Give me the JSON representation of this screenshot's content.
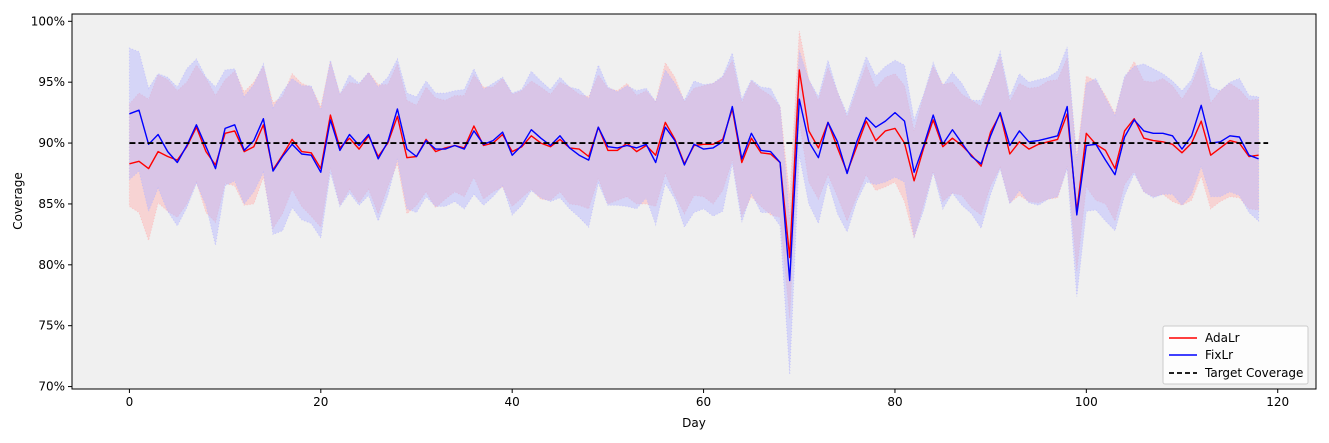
{
  "chart_data": {
    "type": "line",
    "xlabel": "Day",
    "ylabel": "Coverage",
    "xlim": [
      -6,
      124
    ],
    "ylim": [
      69.8,
      100.6
    ],
    "xticks": [
      0,
      20,
      40,
      60,
      80,
      100,
      120
    ],
    "yticks": [
      70,
      75,
      80,
      85,
      90,
      95,
      100
    ],
    "ytick_suffix": "%",
    "grid": false,
    "background": "#f0f0f0",
    "legend": {
      "position": "bottom-right",
      "entries": [
        "AdaLr",
        "FixLr",
        "Target Coverage"
      ]
    },
    "target": {
      "name": "Target Coverage",
      "value": 90,
      "color": "#000000",
      "style": "dashed"
    },
    "series": [
      {
        "name": "AdaLr",
        "color": "#ff0000",
        "band_color": "#ffb0b0",
        "x": [
          0,
          1,
          2,
          3,
          4,
          5,
          6,
          7,
          8,
          9,
          10,
          11,
          12,
          13,
          14,
          15,
          16,
          17,
          18,
          19,
          20,
          21,
          22,
          23,
          24,
          25,
          26,
          27,
          28,
          29,
          30,
          31,
          32,
          33,
          34,
          35,
          36,
          37,
          38,
          39,
          40,
          41,
          42,
          43,
          44,
          45,
          46,
          47,
          48,
          49,
          50,
          51,
          52,
          53,
          54,
          55,
          56,
          57,
          58,
          59,
          60,
          61,
          62,
          63,
          64,
          65,
          66,
          67,
          68,
          69,
          70,
          71,
          72,
          73,
          74,
          75,
          76,
          77,
          78,
          79,
          80,
          81,
          82,
          83,
          84,
          85,
          86,
          87,
          88,
          89,
          90,
          91,
          92,
          93,
          94,
          95,
          96,
          97,
          98,
          99,
          100,
          101,
          102,
          103,
          104,
          105,
          106,
          107,
          108,
          109,
          110,
          111,
          112,
          113,
          114,
          115,
          116,
          117,
          118
        ],
        "values": [
          88.3,
          88.5,
          87.9,
          89.3,
          88.9,
          88.6,
          89.7,
          91.3,
          89.3,
          88.2,
          90.8,
          91.0,
          89.3,
          89.7,
          91.5,
          87.8,
          89.0,
          90.3,
          89.3,
          89.2,
          87.9,
          92.3,
          89.6,
          90.4,
          89.5,
          90.6,
          88.9,
          90.0,
          92.2,
          88.8,
          88.9,
          90.3,
          89.3,
          89.6,
          89.8,
          89.6,
          91.4,
          89.8,
          90.0,
          90.7,
          89.3,
          89.7,
          90.6,
          90.0,
          89.7,
          90.3,
          89.6,
          89.5,
          88.9,
          91.3,
          89.4,
          89.4,
          90.0,
          89.3,
          89.8,
          89.0,
          91.7,
          90.3,
          88.3,
          89.8,
          89.9,
          89.9,
          90.3,
          92.8,
          88.4,
          90.4,
          89.2,
          89.1,
          88.4,
          80.6,
          96.0,
          91.0,
          89.6,
          91.7,
          89.6,
          87.6,
          89.7,
          91.8,
          90.2,
          91.0,
          91.2,
          90.0,
          86.9,
          89.6,
          91.9,
          89.7,
          90.4,
          89.8,
          89.0,
          88.1,
          90.9,
          92.4,
          89.1,
          90.1,
          89.5,
          89.9,
          90.1,
          90.3,
          92.4,
          84.4,
          90.8,
          89.9,
          89.4,
          87.9,
          91.0,
          92.0,
          90.4,
          90.2,
          90.1,
          89.9,
          89.2,
          90.0,
          91.8,
          89.0,
          89.6,
          90.2,
          90.0,
          88.9,
          89.0
        ],
        "upper": [
          93.2,
          94.1,
          93.6,
          95.6,
          95.2,
          94.3,
          95.0,
          96.4,
          95.3,
          93.9,
          95.2,
          95.9,
          94.2,
          95.0,
          96.3,
          93.3,
          93.8,
          95.7,
          94.9,
          94.6,
          93.0,
          96.7,
          94.0,
          95.0,
          94.8,
          95.8,
          94.8,
          94.8,
          96.5,
          93.5,
          93.1,
          94.6,
          93.7,
          93.5,
          93.9,
          93.9,
          95.6,
          94.6,
          94.6,
          95.3,
          94.0,
          94.3,
          95.1,
          94.6,
          94.0,
          95.0,
          94.6,
          94.0,
          93.8,
          95.6,
          94.5,
          94.3,
          94.9,
          93.9,
          94.3,
          93.4,
          96.6,
          95.4,
          93.4,
          94.5,
          94.7,
          94.9,
          95.4,
          96.8,
          93.3,
          95.1,
          94.4,
          93.9,
          93.0,
          85.6,
          99.2,
          95.2,
          93.5,
          96.2,
          94.2,
          92.1,
          94.3,
          96.4,
          94.5,
          95.4,
          95.7,
          94.7,
          91.0,
          93.9,
          96.3,
          94.8,
          95.0,
          94.0,
          93.5,
          93.0,
          95.3,
          97.1,
          93.4,
          94.9,
          94.5,
          94.6,
          95.1,
          95.2,
          97.0,
          88.9,
          95.5,
          95.1,
          93.9,
          92.4,
          95.3,
          96.7,
          95.1,
          95.0,
          95.3,
          94.7,
          93.6,
          94.8,
          96.7,
          93.3,
          94.3,
          94.9,
          94.4,
          93.5,
          93.6
        ],
        "lower": [
          84.8,
          84.3,
          82.0,
          85.1,
          84.4,
          83.9,
          85.0,
          86.8,
          84.3,
          83.5,
          86.7,
          86.5,
          84.9,
          85.0,
          87.2,
          83.0,
          84.2,
          86.2,
          84.8,
          84.0,
          83.1,
          88.0,
          84.9,
          86.2,
          85.1,
          86.2,
          84.2,
          86.4,
          88.3,
          84.2,
          84.9,
          86.0,
          84.7,
          85.4,
          86.0,
          85.6,
          87.2,
          85.4,
          86.0,
          86.4,
          84.8,
          85.5,
          86.2,
          85.4,
          85.3,
          86.0,
          85.0,
          84.9,
          84.6,
          87.1,
          85.0,
          85.3,
          85.6,
          85.0,
          85.0,
          84.8,
          87.5,
          85.7,
          84.2,
          85.7,
          85.6,
          85.0,
          86.1,
          88.6,
          84.0,
          85.6,
          84.8,
          84.1,
          83.9,
          75.6,
          91.8,
          86.8,
          85.4,
          87.4,
          85.6,
          83.6,
          85.6,
          87.4,
          86.1,
          86.4,
          86.8,
          85.2,
          82.2,
          85.0,
          87.7,
          85.2,
          85.9,
          85.7,
          84.7,
          84.1,
          86.5,
          88.0,
          85.1,
          85.7,
          85.2,
          85.1,
          85.4,
          85.5,
          88.1,
          79.5,
          86.4,
          85.3,
          85.0,
          83.6,
          86.6,
          87.7,
          86.0,
          85.6,
          85.8,
          85.2,
          84.9,
          85.3,
          87.3,
          84.6,
          85.2,
          85.6,
          85.5,
          84.6,
          84.5
        ]
      },
      {
        "name": "FixLr",
        "color": "#0000ff",
        "band_color": "#b4b4ff",
        "x": [
          0,
          1,
          2,
          3,
          4,
          5,
          6,
          7,
          8,
          9,
          10,
          11,
          12,
          13,
          14,
          15,
          16,
          17,
          18,
          19,
          20,
          21,
          22,
          23,
          24,
          25,
          26,
          27,
          28,
          29,
          30,
          31,
          32,
          33,
          34,
          35,
          36,
          37,
          38,
          39,
          40,
          41,
          42,
          43,
          44,
          45,
          46,
          47,
          48,
          49,
          50,
          51,
          52,
          53,
          54,
          55,
          56,
          57,
          58,
          59,
          60,
          61,
          62,
          63,
          64,
          65,
          66,
          67,
          68,
          69,
          70,
          71,
          72,
          73,
          74,
          75,
          76,
          77,
          78,
          79,
          80,
          81,
          82,
          83,
          84,
          85,
          86,
          87,
          88,
          89,
          90,
          91,
          92,
          93,
          94,
          95,
          96,
          97,
          98,
          99,
          100,
          101,
          102,
          103,
          104,
          105,
          106,
          107,
          108,
          109,
          110,
          111,
          112,
          113,
          114,
          115,
          116,
          117,
          118
        ],
        "values": [
          92.4,
          92.7,
          89.9,
          90.7,
          89.3,
          88.4,
          89.8,
          91.5,
          89.7,
          87.9,
          91.2,
          91.5,
          89.4,
          90.2,
          92.0,
          87.7,
          88.9,
          89.9,
          89.1,
          89.0,
          87.6,
          91.9,
          89.4,
          90.7,
          89.8,
          90.7,
          88.7,
          90.1,
          92.8,
          89.5,
          88.9,
          90.2,
          89.5,
          89.5,
          89.8,
          89.5,
          91.0,
          89.9,
          90.2,
          90.9,
          89.0,
          89.8,
          91.1,
          90.4,
          89.8,
          90.6,
          89.6,
          89.0,
          88.6,
          91.3,
          89.7,
          89.6,
          89.8,
          89.6,
          89.9,
          88.4,
          91.3,
          90.2,
          88.2,
          89.9,
          89.5,
          89.6,
          90.1,
          93.0,
          88.7,
          90.8,
          89.4,
          89.3,
          88.4,
          78.7,
          93.6,
          90.1,
          88.8,
          91.7,
          90.1,
          87.5,
          90.1,
          92.1,
          91.3,
          91.8,
          92.5,
          91.8,
          87.6,
          89.8,
          92.3,
          89.9,
          91.1,
          90.0,
          88.9,
          88.3,
          90.6,
          92.5,
          89.8,
          91.0,
          90.1,
          90.2,
          90.4,
          90.6,
          93.0,
          84.1,
          89.8,
          89.9,
          88.6,
          87.4,
          90.5,
          91.9,
          91.0,
          90.8,
          90.8,
          90.6,
          89.5,
          90.6,
          93.1,
          90.0,
          90.1,
          90.6,
          90.5,
          89.0,
          88.7
        ],
        "upper": [
          97.8,
          97.5,
          94.5,
          95.7,
          95.4,
          94.6,
          96.1,
          96.9,
          95.4,
          94.6,
          96.0,
          96.1,
          93.8,
          94.8,
          96.5,
          92.9,
          94.2,
          95.3,
          94.7,
          94.7,
          92.7,
          96.8,
          94.0,
          95.6,
          94.9,
          95.8,
          94.6,
          95.4,
          96.9,
          94.1,
          93.8,
          95.1,
          94.1,
          94.1,
          94.3,
          94.4,
          96.1,
          94.4,
          94.9,
          95.4,
          94.1,
          94.4,
          95.9,
          95.1,
          94.4,
          95.4,
          94.6,
          94.4,
          93.6,
          96.4,
          94.6,
          94.2,
          94.7,
          94.3,
          94.5,
          93.4,
          96.0,
          94.9,
          93.5,
          95.1,
          94.8,
          94.9,
          95.5,
          97.4,
          93.6,
          95.2,
          94.6,
          94.5,
          93.0,
          83.7,
          97.6,
          95.2,
          93.8,
          96.8,
          94.2,
          92.4,
          94.8,
          97.1,
          95.5,
          96.3,
          96.8,
          96.4,
          91.9,
          94.0,
          96.6,
          94.7,
          95.8,
          94.9,
          93.5,
          93.5,
          95.2,
          97.5,
          93.8,
          95.7,
          95.0,
          95.2,
          95.4,
          95.9,
          97.9,
          88.6,
          94.9,
          95.3,
          93.7,
          92.3,
          95.5,
          96.3,
          96.5,
          96.1,
          95.7,
          95.1,
          94.3,
          95.2,
          97.5,
          94.6,
          94.3,
          95.0,
          95.3,
          93.9,
          93.8
        ],
        "lower": [
          87.0,
          87.7,
          84.4,
          86.3,
          84.4,
          83.2,
          84.7,
          86.7,
          84.9,
          81.6,
          86.5,
          86.9,
          85.0,
          86.0,
          87.6,
          82.5,
          82.8,
          84.7,
          83.7,
          83.4,
          82.2,
          87.6,
          84.8,
          85.9,
          84.9,
          85.7,
          83.6,
          85.7,
          88.7,
          84.6,
          84.3,
          85.6,
          84.8,
          84.8,
          85.2,
          84.6,
          85.8,
          84.9,
          85.6,
          86.5,
          84.1,
          84.9,
          86.1,
          85.5,
          85.2,
          85.5,
          84.6,
          83.9,
          83.1,
          86.7,
          84.9,
          84.9,
          84.8,
          84.6,
          85.5,
          83.3,
          86.7,
          85.4,
          83.1,
          84.3,
          84.6,
          84.0,
          84.4,
          88.3,
          83.5,
          85.9,
          84.3,
          84.3,
          83.2,
          71.0,
          89.0,
          85.0,
          83.4,
          86.8,
          84.2,
          82.7,
          85.2,
          86.8,
          86.6,
          86.8,
          87.2,
          86.8,
          82.3,
          84.5,
          87.6,
          84.6,
          85.9,
          84.9,
          84.2,
          83.0,
          85.8,
          87.9,
          85.0,
          86.1,
          85.1,
          84.9,
          85.4,
          85.6,
          87.9,
          77.4,
          84.4,
          84.5,
          83.6,
          82.8,
          85.7,
          87.5,
          86.0,
          85.5,
          85.8,
          85.8,
          84.9,
          85.8,
          88.1,
          85.6,
          85.6,
          86.0,
          85.7,
          84.3,
          83.6
        ]
      }
    ]
  }
}
